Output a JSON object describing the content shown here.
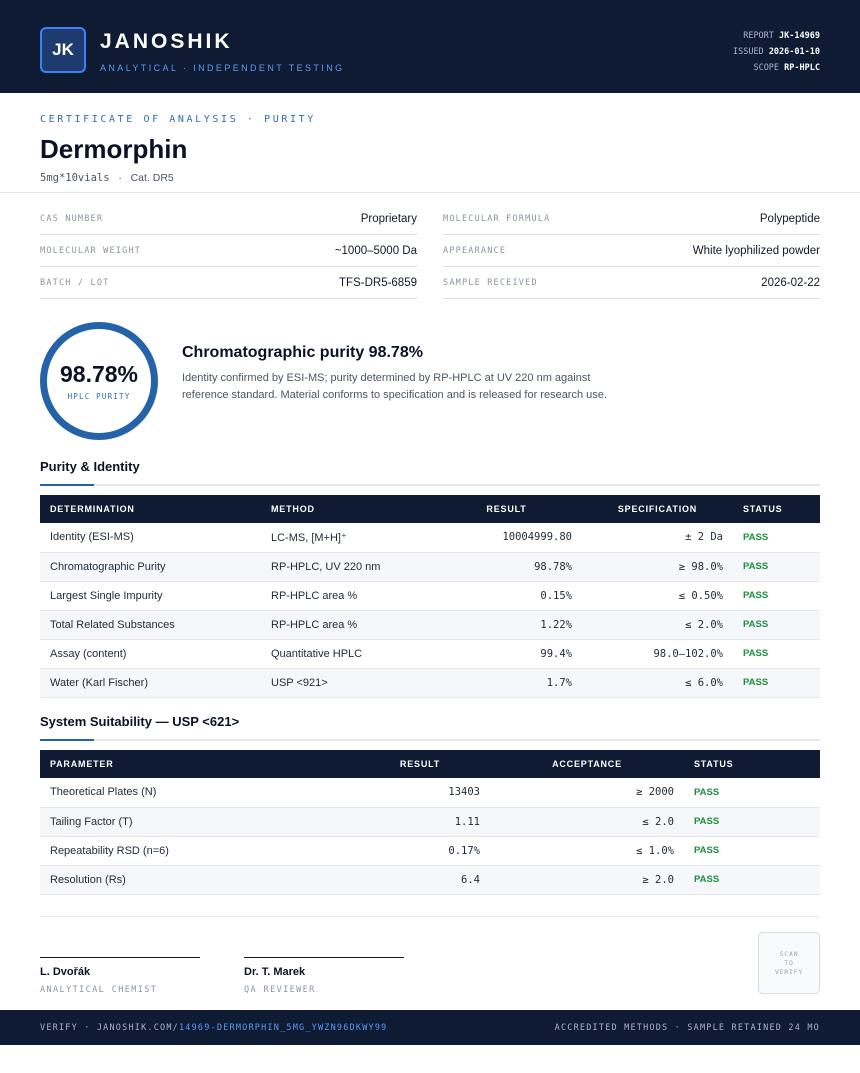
{
  "header": {
    "logo": "JK",
    "brand": "JANOSHIK",
    "tagline": "ANALYTICAL · INDEPENDENT TESTING",
    "report_label": "REPORT",
    "report_value": "JK-14969",
    "issued_label": "ISSUED",
    "issued_value": "2026-01-10",
    "scope_label": "SCOPE",
    "scope_value": "RP-HPLC"
  },
  "doc": {
    "cert_label": "CERTIFICATE OF ANALYSIS · PURITY",
    "title": "Dermorphin",
    "size": "5mg*10vials",
    "sep": "·",
    "cat": "Cat. DR5"
  },
  "info": {
    "left": [
      {
        "label": "CAS NUMBER",
        "value": "Proprietary"
      },
      {
        "label": "MOLECULAR WEIGHT",
        "value": "~1000–5000 Da"
      },
      {
        "label": "BATCH / LOT",
        "value": "TFS-DR5-6859"
      }
    ],
    "right": [
      {
        "label": "MOLECULAR FORMULA",
        "value": "Polypeptide"
      },
      {
        "label": "APPEARANCE",
        "value": "White lyophilized powder"
      },
      {
        "label": "SAMPLE RECEIVED",
        "value": "2026-02-22"
      }
    ]
  },
  "summary": {
    "ring_value": "98.78%",
    "ring_label": "HPLC PURITY",
    "heading": "Chromatographic purity 98.78%",
    "description": "Identity confirmed by ESI-MS; purity determined by RP-HPLC at UV 220 nm against reference standard. Material conforms to specification and is released for research use.",
    "accent_color": "#2563a8"
  },
  "purity_section": {
    "title": "Purity & Identity",
    "headers": [
      "DETERMINATION",
      "METHOD",
      "RESULT",
      "SPECIFICATION",
      "STATUS"
    ],
    "rows": [
      {
        "determination": "Identity (ESI-MS)",
        "method": "LC-MS, [M+H]⁺",
        "result": "10004999.80",
        "spec": "± 2 Da",
        "status": "PASS"
      },
      {
        "determination": "Chromatographic Purity",
        "method": "RP-HPLC, UV 220 nm",
        "result": "98.78%",
        "spec": "≥ 98.0%",
        "status": "PASS"
      },
      {
        "determination": "Largest Single Impurity",
        "method": "RP-HPLC area %",
        "result": "0.15%",
        "spec": "≤ 0.50%",
        "status": "PASS"
      },
      {
        "determination": "Total Related Substances",
        "method": "RP-HPLC area %",
        "result": "1.22%",
        "spec": "≤ 2.0%",
        "status": "PASS"
      },
      {
        "determination": "Assay (content)",
        "method": "Quantitative HPLC",
        "result": "99.4%",
        "spec": "98.0–102.0%",
        "status": "PASS"
      },
      {
        "determination": "Water (Karl Fischer)",
        "method": "USP <921>",
        "result": "1.7%",
        "spec": "≤ 6.0%",
        "status": "PASS"
      }
    ]
  },
  "suitability_section": {
    "title": "System Suitability — USP <621>",
    "headers": [
      "PARAMETER",
      "RESULT",
      "ACCEPTANCE",
      "STATUS"
    ],
    "rows": [
      {
        "parameter": "Theoretical Plates (N)",
        "result": "13403",
        "acceptance": "≥ 2000",
        "status": "PASS"
      },
      {
        "parameter": "Tailing Factor (T)",
        "result": "1.11",
        "acceptance": "≤ 2.0",
        "status": "PASS"
      },
      {
        "parameter": "Repeatability RSD (n=6)",
        "result": "0.17%",
        "acceptance": "≤ 1.0%",
        "status": "PASS"
      },
      {
        "parameter": "Resolution (Rs)",
        "result": "6.4",
        "acceptance": "≥ 2.0",
        "status": "PASS"
      }
    ]
  },
  "signatures": [
    {
      "name": "L. Dvořák",
      "role": "ANALYTICAL CHEMIST"
    },
    {
      "name": "Dr. T. Marek",
      "role": "QA REVIEWER"
    }
  ],
  "qr": {
    "line1": "SCAN",
    "line2": "TO",
    "line3": "VERIFY"
  },
  "footer": {
    "verify_prefix": "VERIFY · JANOSHIK.COM/",
    "verify_link": "14969-DERMORPHIN_5MG_YWZN96DKWY99",
    "right": "ACCREDITED METHODS · SAMPLE RETAINED 24 MO"
  },
  "colors": {
    "navy": "#0f1b33",
    "accent": "#2563a8",
    "pass": "#1e8e3e"
  }
}
